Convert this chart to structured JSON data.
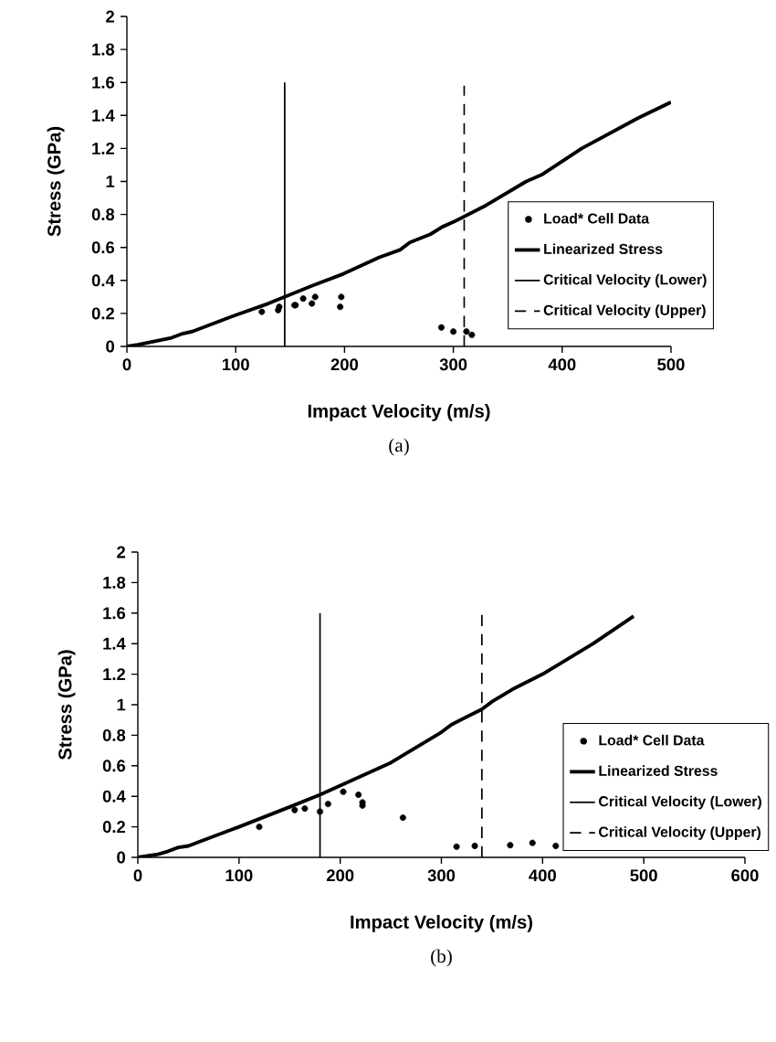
{
  "chart_data": [
    {
      "type": "scatter",
      "xlabel": "Impact Velocity (m/s)",
      "ylabel": "Stress (GPa)",
      "annotations": [
        "(a)"
      ],
      "xlim": [
        0,
        500
      ],
      "xticks": [
        0,
        100,
        200,
        300,
        400,
        500
      ],
      "ylim": [
        0,
        2
      ],
      "yticks": [
        0,
        0.2,
        0.4,
        0.6,
        0.8,
        1,
        1.2,
        1.4,
        1.6,
        1.8,
        2
      ],
      "legend": "right",
      "grid": false,
      "series": [
        {
          "name": "Load* Cell Data",
          "marker": "circle",
          "color": "#000000",
          "x": [
            124,
            139,
            140,
            154,
            155,
            162,
            170,
            173,
            196,
            197,
            289,
            300,
            312,
            317
          ],
          "values": [
            0.21,
            0.22,
            0.24,
            0.25,
            0.25,
            0.29,
            0.26,
            0.3,
            0.24,
            0.3,
            0.115,
            0.09,
            0.09,
            0.07
          ]
        },
        {
          "name": "Linearized Stress",
          "type": "line",
          "marker": "none",
          "line_style": "solid",
          "color": "#000000",
          "x": [
            0,
            10,
            40,
            50,
            60,
            100,
            130,
            171,
            199,
            232,
            251,
            260,
            279,
            290,
            302,
            330,
            367,
            381,
            418,
            470,
            500
          ],
          "values": [
            0,
            0.01,
            0.05,
            0.075,
            0.09,
            0.19,
            0.26,
            0.37,
            0.44,
            0.54,
            0.585,
            0.63,
            0.68,
            0.725,
            0.76,
            0.855,
            1.0,
            1.04,
            1.2,
            1.385,
            1.48
          ]
        },
        {
          "name": "Critical Velocity (Lower)",
          "type": "line",
          "marker": "none",
          "line_style": "solid",
          "color": "#000000",
          "x": [
            145,
            145
          ],
          "values": [
            0,
            1.6
          ]
        },
        {
          "name": "Critical Velocity (Upper)",
          "type": "line",
          "marker": "none",
          "line_style": "dashed",
          "color": "#000000",
          "x": [
            310,
            310
          ],
          "values": [
            0,
            1.58
          ]
        }
      ]
    },
    {
      "type": "scatter",
      "xlabel": "Impact Velocity (m/s)",
      "ylabel": "Stress (GPa)",
      "annotations": [
        "(b)"
      ],
      "xlim": [
        0,
        600
      ],
      "xticks": [
        0,
        100,
        200,
        300,
        400,
        500,
        600
      ],
      "ylim": [
        0,
        2
      ],
      "yticks": [
        0,
        0.2,
        0.4,
        0.6,
        0.8,
        1,
        1.2,
        1.4,
        1.6,
        1.8,
        2
      ],
      "legend": "right",
      "grid": false,
      "series": [
        {
          "name": "Load* Cell Data",
          "marker": "circle",
          "color": "#000000",
          "x": [
            120,
            155,
            165,
            180,
            188,
            203,
            218,
            222,
            222,
            262,
            315,
            333,
            368,
            390,
            413
          ],
          "values": [
            0.2,
            0.31,
            0.32,
            0.3,
            0.35,
            0.43,
            0.41,
            0.36,
            0.34,
            0.26,
            0.07,
            0.075,
            0.08,
            0.095,
            0.075
          ]
        },
        {
          "name": "Linearized Stress",
          "type": "line",
          "marker": "none",
          "line_style": "solid",
          "color": "#000000",
          "x": [
            0,
            20,
            30,
            40,
            50,
            60,
            100,
            150,
            180,
            200,
            250,
            300,
            310,
            340,
            350,
            370,
            400,
            450,
            490
          ],
          "values": [
            0,
            0.02,
            0.04,
            0.065,
            0.075,
            0.1,
            0.2,
            0.33,
            0.41,
            0.47,
            0.62,
            0.82,
            0.87,
            0.97,
            1.02,
            1.1,
            1.2,
            1.4,
            1.58
          ]
        },
        {
          "name": "Critical Velocity (Lower)",
          "type": "line",
          "marker": "none",
          "line_style": "solid",
          "color": "#000000",
          "x": [
            180,
            180
          ],
          "values": [
            0,
            1.6
          ]
        },
        {
          "name": "Critical Velocity (Upper)",
          "type": "line",
          "marker": "none",
          "line_style": "dashed",
          "color": "#000000",
          "x": [
            340,
            340
          ],
          "values": [
            0,
            1.6
          ]
        }
      ]
    }
  ]
}
